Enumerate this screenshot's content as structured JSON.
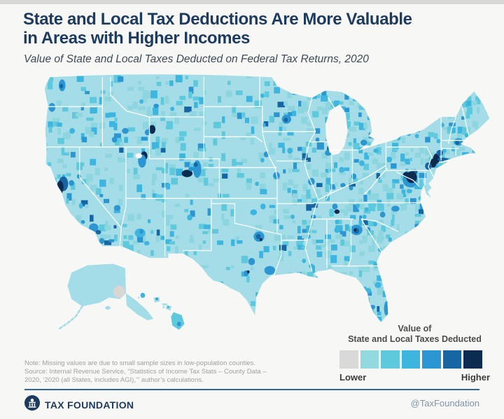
{
  "header": {
    "title_line1": "State and Local Tax Deductions Are More Valuable",
    "title_line2": "in Areas with Higher Incomes",
    "subtitle": "Value of State and Local Taxes Deducted on Federal Tax Returns, 2020"
  },
  "legend": {
    "title_line1": "Value of",
    "title_line2": "State and Local Taxes Deducted",
    "low_label": "Lower",
    "high_label": "Higher",
    "colors": [
      "#d9d9d9",
      "#93dade",
      "#5ec8dc",
      "#3db5de",
      "#2b96d1",
      "#1766a4",
      "#0c2b50"
    ]
  },
  "notes": {
    "line1": "Note: Missing values are due to small sample sizes in low-population counties.",
    "line2": "Source: Internal Revenue Service, “Statistics of Income Tax Stats – County Data –",
    "line3": "2020, ‘2020 (all States, includes AGI),’” author’s calculations."
  },
  "footer": {
    "brand": "TAX FOUNDATION",
    "handle": "@TaxFoundation",
    "logo_icon": "capitol-building-icon",
    "brand_color": "#1d3a5f"
  },
  "chart_data": {
    "type": "choropleth",
    "title": "State and Local Tax Deductions Are More Valuable in Areas with Higher Incomes",
    "subtitle": "Value of State and Local Taxes Deducted on Federal Tax Returns, 2020",
    "geography": "United States counties (incl. Alaska and Hawaii insets)",
    "scale": {
      "type": "sequential",
      "low_label": "Lower",
      "high_label": "Higher",
      "missing_color": "#d9d9d9",
      "ramp": [
        "#93dade",
        "#5ec8dc",
        "#3db5de",
        "#2b96d1",
        "#1766a4",
        "#0c2b50"
      ]
    },
    "note": "Missing values (gray) due to small sample sizes in low-population counties; highest values cluster around major metros (NYC, DC, SF Bay, Boston, Chicago, Atlanta, Dallas, Denver, Salt Lake City, Jackson Hole, Aspen)."
  },
  "map": {
    "base_color": "#a4dde7",
    "background": "#f7f7f5",
    "border_color": "#ffffff",
    "missing_blob_color": "#d9d6d4",
    "palette": [
      "#d9d9d9",
      "#93dade",
      "#5ec8dc",
      "#3db5de",
      "#2b96d1",
      "#1766a4",
      "#0c2b50"
    ],
    "speckle": {
      "seed": 20,
      "cell": 7,
      "density_west": 0.22,
      "density_plains": 0.12,
      "density_east": 0.33,
      "size_min": 4,
      "size_range": 7,
      "weights": [
        [
          0.42,
          "#8dd5df"
        ],
        [
          0.72,
          "#5ec8dc"
        ],
        [
          0.89,
          "#3db5de"
        ],
        [
          0.97,
          "#2b96d1"
        ],
        [
          1.01,
          "#1766a4"
        ]
      ]
    },
    "highlights": [
      [
        "seattle",
        32,
        17,
        5,
        8,
        4
      ],
      [
        "seattle-core",
        31,
        18,
        2.5,
        3,
        5
      ],
      [
        "portland-or",
        17,
        47,
        5,
        6,
        4
      ],
      [
        "bend",
        47,
        79,
        4,
        4,
        3
      ],
      [
        "boise",
        110,
        91,
        4,
        4,
        4
      ],
      [
        "sun-valley",
        126,
        79,
        5,
        4,
        4
      ],
      [
        "missoula",
        150,
        39,
        3,
        3,
        3
      ],
      [
        "bozeman",
        172,
        45,
        4,
        3,
        4
      ],
      [
        "billings",
        196,
        49,
        3,
        3,
        3
      ],
      [
        "jackson-hole",
        166,
        77,
        5,
        6,
        6
      ],
      [
        "teton-idaho",
        159,
        81,
        4,
        4,
        4
      ],
      [
        "slc-park-city",
        154,
        113,
        5,
        6,
        6
      ],
      [
        "slc-metro",
        151,
        120,
        6,
        9,
        4
      ],
      [
        "sacramento",
        46,
        150,
        4,
        4,
        4
      ],
      [
        "tahoe",
        57,
        141,
        3,
        3,
        4
      ],
      [
        "sf-ring",
        34,
        151,
        7,
        10,
        5
      ],
      [
        "sf-bay",
        29,
        156,
        5,
        9,
        6
      ],
      [
        "fresno",
        60,
        181,
        3,
        4,
        3
      ],
      [
        "santa-barbara",
        63,
        203,
        3,
        2.5,
        4
      ],
      [
        "la-metro",
        79,
        211,
        7,
        6,
        4
      ],
      [
        "orange-county",
        86,
        217,
        4,
        3,
        5
      ],
      [
        "san-diego",
        91,
        229,
        4,
        4,
        4
      ],
      [
        "las-vegas",
        114,
        184,
        5,
        4,
        4
      ],
      [
        "phoenix",
        148,
        218,
        8,
        6,
        3
      ],
      [
        "scottsdale",
        150,
        216,
        3,
        3,
        4
      ],
      [
        "tucson",
        158,
        232,
        4,
        3,
        3
      ],
      [
        "albuquerque",
        222,
        197,
        4,
        4,
        3
      ],
      [
        "santa-fe",
        227,
        192,
        3,
        3,
        4
      ],
      [
        "denver-front-range",
        233,
        131,
        6,
        12,
        4
      ],
      [
        "boulder",
        231,
        125,
        3,
        3,
        5
      ],
      [
        "aspen-vail",
        218,
        137,
        8,
        5,
        6
      ],
      [
        "eagle",
        224,
        131,
        4,
        3,
        4
      ],
      [
        "fargo",
        330,
        31,
        3,
        3,
        3
      ],
      [
        "sioux-falls",
        332,
        71,
        3,
        3,
        3
      ],
      [
        "omaha",
        336,
        111,
        4,
        4,
        4
      ],
      [
        "lincoln",
        330,
        119,
        3,
        3,
        3
      ],
      [
        "des-moines",
        371,
        106,
        4,
        4,
        3
      ],
      [
        "minneapolis",
        366,
        63,
        7,
        6,
        4
      ],
      [
        "minneapolis-core",
        365,
        64,
        3,
        3,
        5
      ],
      [
        "wichita",
        322,
        151,
        3,
        3,
        3
      ],
      [
        "kansas-city",
        351,
        140,
        5,
        5,
        4
      ],
      [
        "st-louis",
        403,
        148,
        5,
        5,
        4
      ],
      [
        "okc",
        317,
        190,
        5,
        4,
        3
      ],
      [
        "tulsa",
        331,
        182,
        4,
        4,
        3
      ],
      [
        "dfw",
        325,
        223,
        8,
        7,
        4
      ],
      [
        "dfw-core",
        324,
        223,
        3.5,
        3.5,
        5
      ],
      [
        "dfw-dot",
        328,
        227,
        2,
        2,
        6
      ],
      [
        "austin",
        314,
        257,
        5,
        5,
        4
      ],
      [
        "san-antonio",
        306,
        273,
        4,
        4,
        4
      ],
      [
        "sa-dot",
        309,
        271,
        2,
        2,
        6
      ],
      [
        "houston",
        341,
        269,
        8,
        6,
        4
      ],
      [
        "little-rock",
        375,
        196,
        3,
        3,
        3
      ],
      [
        "memphis",
        406,
        196,
        4,
        3,
        4
      ],
      [
        "jackson-ms",
        399,
        223,
        3,
        3,
        3
      ],
      [
        "baton-rouge",
        392,
        256,
        3,
        3,
        3
      ],
      [
        "new-orleans",
        403,
        263,
        4,
        3,
        3
      ],
      [
        "nashville",
        438,
        182,
        4,
        4,
        4
      ],
      [
        "williamson-tn",
        441,
        189,
        4,
        3,
        6
      ],
      [
        "knoxville",
        472,
        181,
        3,
        3,
        3
      ],
      [
        "birmingham",
        441,
        214,
        4,
        4,
        3
      ],
      [
        "huntsville",
        441,
        203,
        3,
        3,
        3
      ],
      [
        "atlanta",
        470,
        214,
        9,
        7,
        4
      ],
      [
        "atlanta-core",
        470,
        215,
        4,
        4,
        5
      ],
      [
        "atlanta-dot",
        468,
        214,
        2,
        2,
        6
      ],
      [
        "augusta",
        488,
        213,
        3,
        3,
        4
      ],
      [
        "charlotte",
        509,
        193,
        4,
        4,
        4
      ],
      [
        "raleigh",
        528,
        185,
        6,
        4,
        4
      ],
      [
        "asheville",
        485,
        186,
        3,
        3,
        3
      ],
      [
        "greenville-sc",
        482,
        196,
        3,
        3,
        3
      ],
      [
        "columbia-sc",
        498,
        206,
        3,
        3,
        3
      ],
      [
        "charleston-sc",
        520,
        227,
        3,
        3,
        3
      ],
      [
        "savannah",
        505,
        241,
        3,
        3,
        3
      ],
      [
        "jacksonville",
        499,
        261,
        4,
        4,
        3
      ],
      [
        "orlando",
        502,
        289,
        5,
        4,
        3
      ],
      [
        "tampa",
        487,
        297,
        5,
        4,
        3
      ],
      [
        "naples",
        494,
        319,
        4,
        3,
        4
      ],
      [
        "miami",
        515,
        321,
        4,
        10,
        4
      ],
      [
        "chicago",
        431,
        104,
        5,
        7,
        5
      ],
      [
        "chicago-metro",
        428,
        109,
        5,
        4,
        4
      ],
      [
        "milwaukee",
        428,
        91,
        4,
        3,
        4
      ],
      [
        "madison",
        412,
        91,
        3,
        3,
        4
      ],
      [
        "indianapolis",
        448,
        132,
        4,
        4,
        3
      ],
      [
        "columbus",
        478,
        123,
        4,
        4,
        3
      ],
      [
        "cincinnati",
        466,
        141,
        4,
        4,
        4
      ],
      [
        "cleveland",
        499,
        106,
        4,
        3,
        3
      ],
      [
        "detroit",
        481,
        95,
        5,
        4,
        4
      ],
      [
        "pittsburgh",
        519,
        118,
        4,
        4,
        3
      ],
      [
        "louisville",
        450,
        153,
        4,
        3,
        4
      ],
      [
        "lexington",
        462,
        157,
        3,
        3,
        4
      ],
      [
        "buffalo",
        533,
        89,
        3,
        3,
        3
      ],
      [
        "rochester",
        548,
        83,
        3,
        3,
        3
      ],
      [
        "syracuse",
        560,
        86,
        3,
        3,
        3
      ],
      [
        "albany",
        592,
        93,
        3,
        3,
        3
      ],
      [
        "burlington",
        598,
        71,
        3,
        3,
        3
      ],
      [
        "portland-me",
        634,
        85,
        3,
        3,
        3
      ],
      [
        "boston",
        622,
        94,
        7,
        5,
        4
      ],
      [
        "boston-core",
        620,
        95,
        3,
        3,
        5
      ],
      [
        "hartford",
        601,
        106,
        3,
        3,
        3
      ],
      [
        "providence",
        614,
        104,
        3,
        3,
        3
      ],
      [
        "nyc",
        589,
        117,
        5,
        7,
        6
      ],
      [
        "north-jersey",
        584,
        123,
        5,
        6,
        6
      ],
      [
        "westchester",
        594,
        109,
        5,
        4,
        5
      ],
      [
        "long-island",
        599,
        118,
        8,
        2.5,
        5
      ],
      [
        "philadelphia",
        577,
        127,
        5,
        5,
        5
      ],
      [
        "baltimore",
        557,
        135,
        4,
        3,
        5
      ],
      [
        "dc-ring",
        550,
        146,
        11,
        10,
        4
      ],
      [
        "dc-metro",
        552,
        142,
        8,
        8,
        6
      ],
      [
        "loudoun",
        544,
        139,
        5,
        4,
        6
      ],
      [
        "richmond",
        549,
        161,
        4,
        3,
        3
      ],
      [
        "virginia-beach",
        566,
        171,
        4,
        3,
        3
      ]
    ]
  }
}
